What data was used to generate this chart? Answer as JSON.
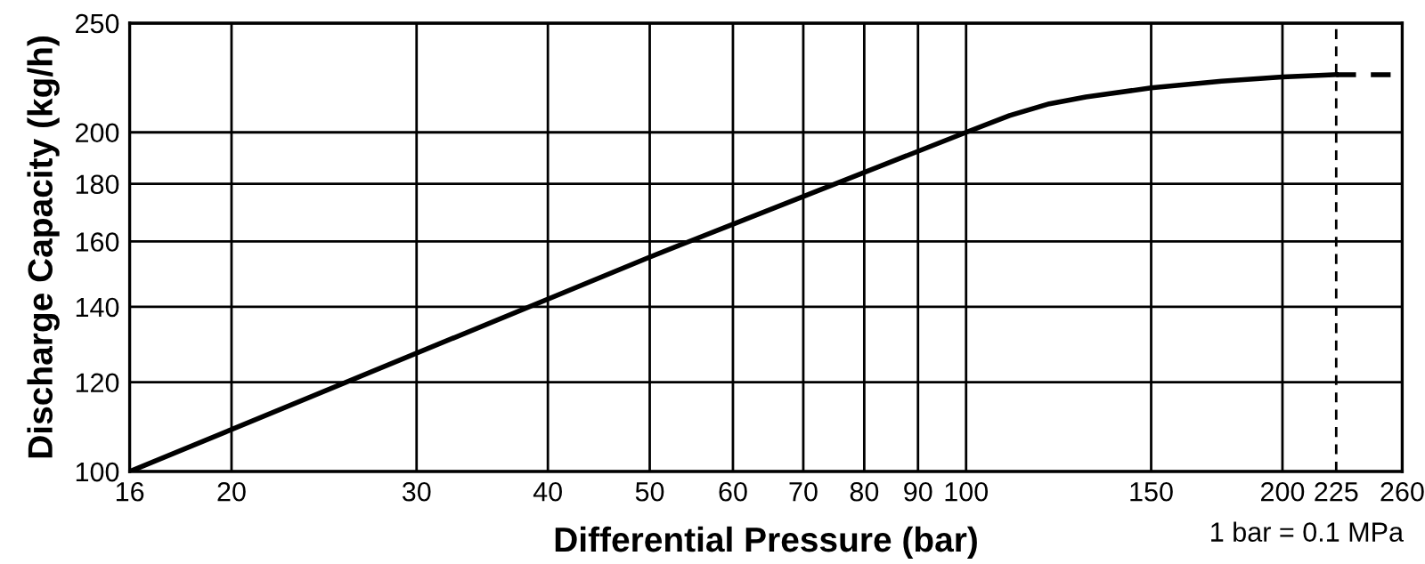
{
  "chart_data": {
    "type": "line",
    "xlabel": "Differential Pressure (bar)",
    "ylabel": "Discharge Capacity (kg/h)",
    "log": "xy",
    "grid": true,
    "series": [
      {
        "color": "#000000",
        "line_style": "solid",
        "x": [
          16,
          50,
          100,
          110,
          120,
          130,
          150,
          175,
          200,
          225
        ],
        "values": [
          100,
          155,
          200,
          207,
          212,
          215,
          219,
          222,
          224,
          225
        ]
      },
      {
        "color": "#000000",
        "line_style": "dashed",
        "x": [
          225,
          260
        ],
        "values": [
          225,
          225
        ]
      }
    ],
    "xlim": [
      16,
      260
    ],
    "ylim": [
      100,
      250
    ],
    "xticks": [
      16,
      20,
      30,
      40,
      50,
      60,
      70,
      80,
      90,
      100,
      150,
      200,
      225,
      260
    ],
    "yticks": [
      100,
      120,
      140,
      160,
      180,
      200,
      250
    ],
    "ref_lines": [
      {
        "axis": "x",
        "value": 225,
        "line_style": "dashed",
        "color": "#000000"
      }
    ],
    "annotations": [
      "1 bar = 0.1 MPa"
    ]
  }
}
